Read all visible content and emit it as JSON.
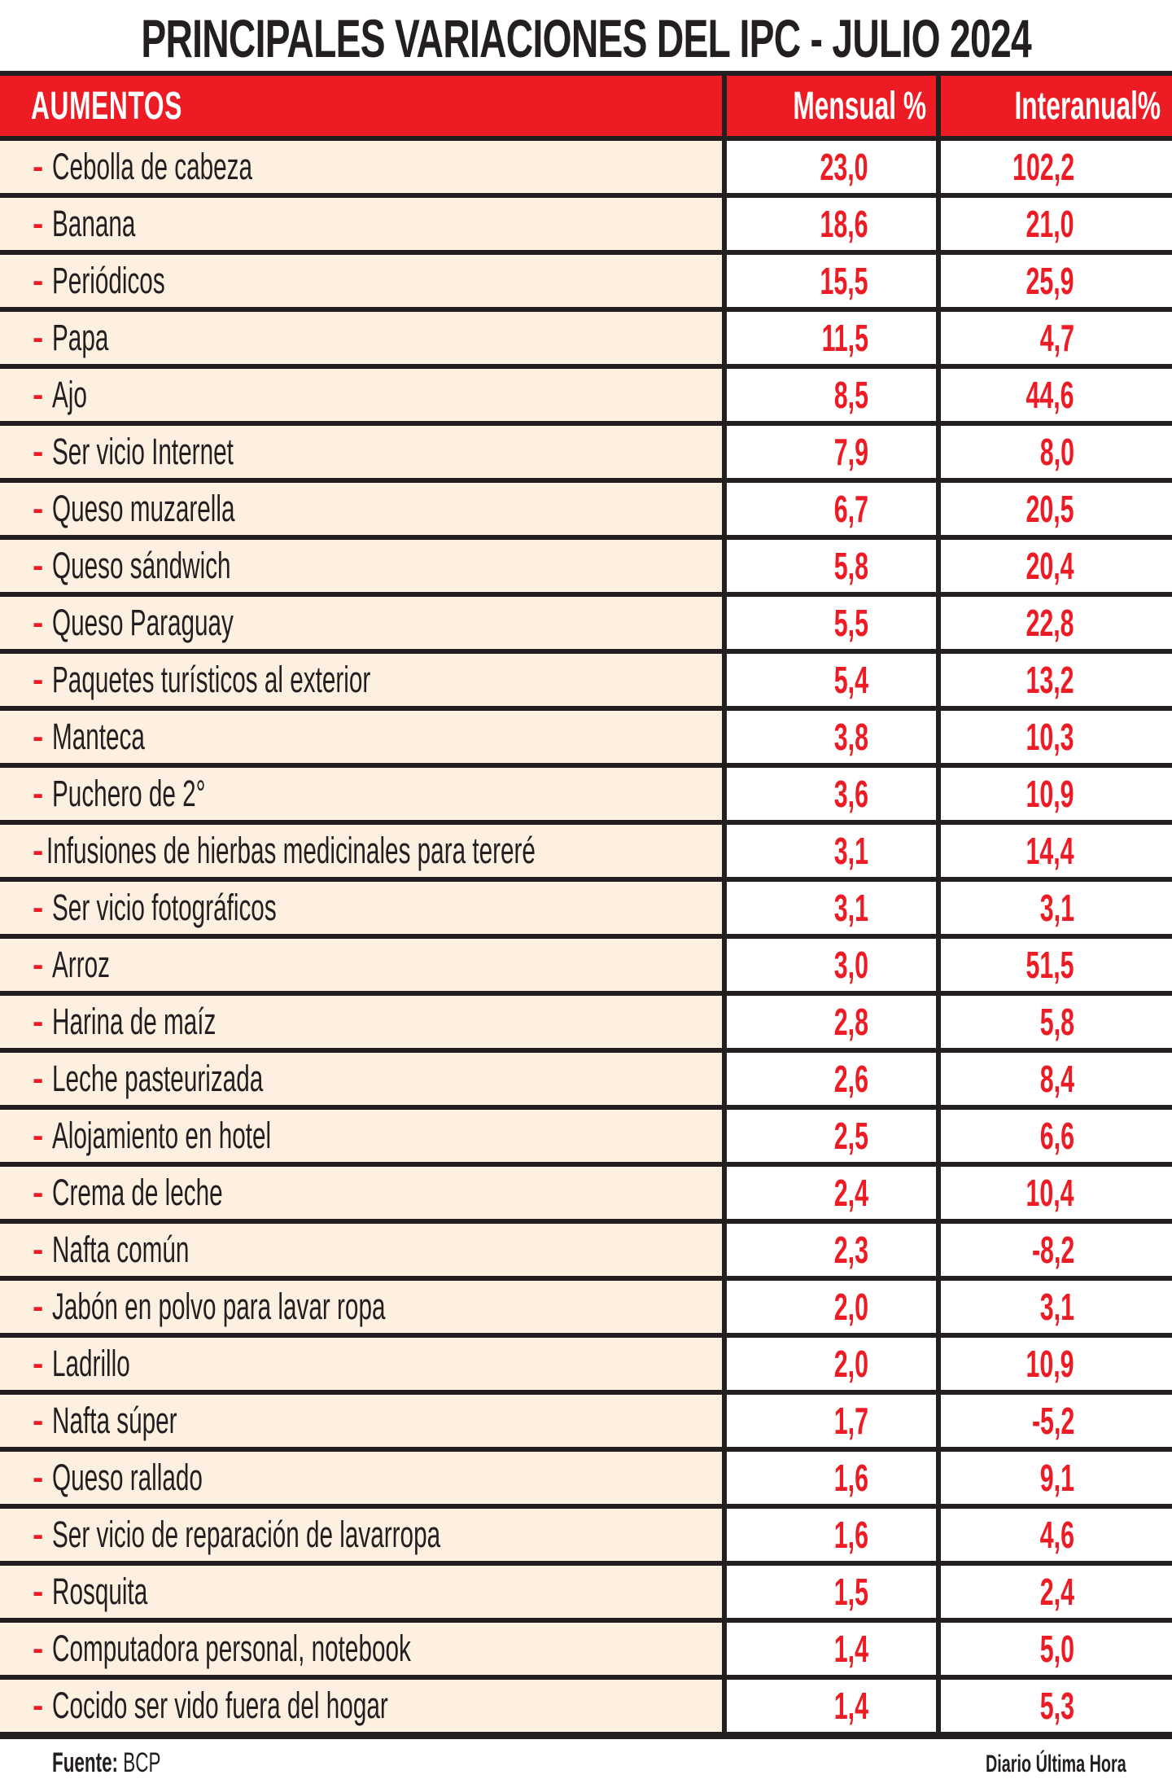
{
  "title": "PRINCIPALES VARIACIONES DEL IPC - JULIO 2024",
  "colors": {
    "accent_red": "#ED1C24",
    "row_label_bg": "#FDF0E0",
    "border": "#231F20",
    "number_cell_bg": "#FFFFFF"
  },
  "table": {
    "headers": {
      "item": "AUMENTOS",
      "monthly": "Mensual %",
      "yearly": "Interanual%"
    },
    "bullet": "-",
    "rows": [
      {
        "item": "Cebolla de cabeza",
        "monthly": "23,0",
        "yearly": "102,2"
      },
      {
        "item": "Banana",
        "monthly": "18,6",
        "yearly": "21,0"
      },
      {
        "item": "Periódicos",
        "monthly": "15,5",
        "yearly": "25,9"
      },
      {
        "item": "Papa",
        "monthly": "11,5",
        "yearly": "4,7"
      },
      {
        "item": "Ajo",
        "monthly": "8,5",
        "yearly": "44,6"
      },
      {
        "item": "Ser vicio Internet",
        "monthly": "7,9",
        "yearly": "8,0"
      },
      {
        "item": "Queso muzarella",
        "monthly": "6,7",
        "yearly": "20,5"
      },
      {
        "item": "Queso sándwich",
        "monthly": "5,8",
        "yearly": "20,4"
      },
      {
        "item": "Queso Paraguay",
        "monthly": "5,5",
        "yearly": "22,8"
      },
      {
        "item": "Paquetes turísticos al exterior",
        "monthly": "5,4",
        "yearly": "13,2"
      },
      {
        "item": "Manteca",
        "monthly": "3,8",
        "yearly": "10,3"
      },
      {
        "item": "Puchero de 2°",
        "monthly": "3,6",
        "yearly": "10,9"
      },
      {
        "item": "Infusiones de hierbas medicinales para tereré",
        "monthly": "3,1",
        "yearly": "14,4"
      },
      {
        "item": "Ser vicio fotográficos",
        "monthly": "3,1",
        "yearly": "3,1"
      },
      {
        "item": "Arroz",
        "monthly": "3,0",
        "yearly": "51,5"
      },
      {
        "item": "Harina de maíz",
        "monthly": "2,8",
        "yearly": "5,8"
      },
      {
        "item": "Leche pasteurizada",
        "monthly": "2,6",
        "yearly": "8,4"
      },
      {
        "item": "Alojamiento en hotel",
        "monthly": "2,5",
        "yearly": "6,6"
      },
      {
        "item": "Crema de leche",
        "monthly": "2,4",
        "yearly": "10,4"
      },
      {
        "item": "Nafta común",
        "monthly": "2,3",
        "yearly": "-8,2"
      },
      {
        "item": "Jabón en polvo para lavar ropa",
        "monthly": "2,0",
        "yearly": "3,1"
      },
      {
        "item": "Ladrillo",
        "monthly": "2,0",
        "yearly": "10,9"
      },
      {
        "item": "Nafta súper",
        "monthly": "1,7",
        "yearly": "-5,2"
      },
      {
        "item": "Queso rallado",
        "monthly": "1,6",
        "yearly": "9,1"
      },
      {
        "item": "Ser vicio de reparación de lavarropa",
        "monthly": "1,6",
        "yearly": "4,6"
      },
      {
        "item": "Rosquita",
        "monthly": "1,5",
        "yearly": "2,4"
      },
      {
        "item": "Computadora personal, notebook",
        "monthly": "1,4",
        "yearly": "5,0"
      },
      {
        "item": "Cocido ser vido fuera del hogar",
        "monthly": "1,4",
        "yearly": "5,3"
      }
    ]
  },
  "footer": {
    "source_label": "Fuente:",
    "source_value": "BCP",
    "brand": "Diario Última Hora"
  }
}
